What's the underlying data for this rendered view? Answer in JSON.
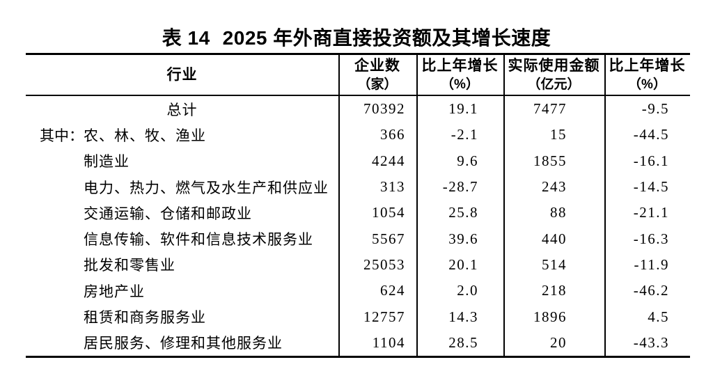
{
  "colors": {
    "background": "#ffffff",
    "text": "#000000",
    "rule_lines": "#000000"
  },
  "title": {
    "table_no": "表 14",
    "text": "2025 年外商直接投资额及其增长速度"
  },
  "table": {
    "header": {
      "industry": "行业",
      "enterprises_line1": "企业数",
      "enterprises_line2": "（家）",
      "growth1_line1": "比上年增长",
      "growth1_line2": "（%）",
      "amount_line1": "实际使用金额",
      "amount_line2": "（亿元）",
      "growth2_line1": "比上年增长",
      "growth2_line2": "（%）"
    },
    "rows": [
      {
        "prefix": "",
        "industry": "总计",
        "enterprises": "70392",
        "growth1": "19.1",
        "amount": "7477",
        "growth2": "-9.5"
      },
      {
        "prefix": "其中：",
        "industry": "农、林、牧、渔业",
        "enterprises": "366",
        "growth1": "-2.1",
        "amount": "15",
        "growth2": "-44.5"
      },
      {
        "prefix": "",
        "industry": "制造业",
        "enterprises": "4244",
        "growth1": "9.6",
        "amount": "1855",
        "growth2": "-16.1"
      },
      {
        "prefix": "",
        "industry": "电力、热力、燃气及水生产和供应业",
        "enterprises": "313",
        "growth1": "-28.7",
        "amount": "243",
        "growth2": "-14.5"
      },
      {
        "prefix": "",
        "industry": "交通运输、仓储和邮政业",
        "enterprises": "1054",
        "growth1": "25.8",
        "amount": "88",
        "growth2": "-21.1"
      },
      {
        "prefix": "",
        "industry": "信息传输、软件和信息技术服务业",
        "enterprises": "5567",
        "growth1": "39.6",
        "amount": "440",
        "growth2": "-16.3"
      },
      {
        "prefix": "",
        "industry": "批发和零售业",
        "enterprises": "25053",
        "growth1": "20.1",
        "amount": "514",
        "growth2": "-11.9"
      },
      {
        "prefix": "",
        "industry": "房地产业",
        "enterprises": "624",
        "growth1": "2.0",
        "amount": "218",
        "growth2": "-46.2"
      },
      {
        "prefix": "",
        "industry": "租赁和商务服务业",
        "enterprises": "12757",
        "growth1": "14.3",
        "amount": "1896",
        "growth2": "4.5"
      },
      {
        "prefix": "",
        "industry": "居民服务、修理和其他服务业",
        "enterprises": "1104",
        "growth1": "28.5",
        "amount": "20",
        "growth2": "-43.3"
      }
    ]
  }
}
